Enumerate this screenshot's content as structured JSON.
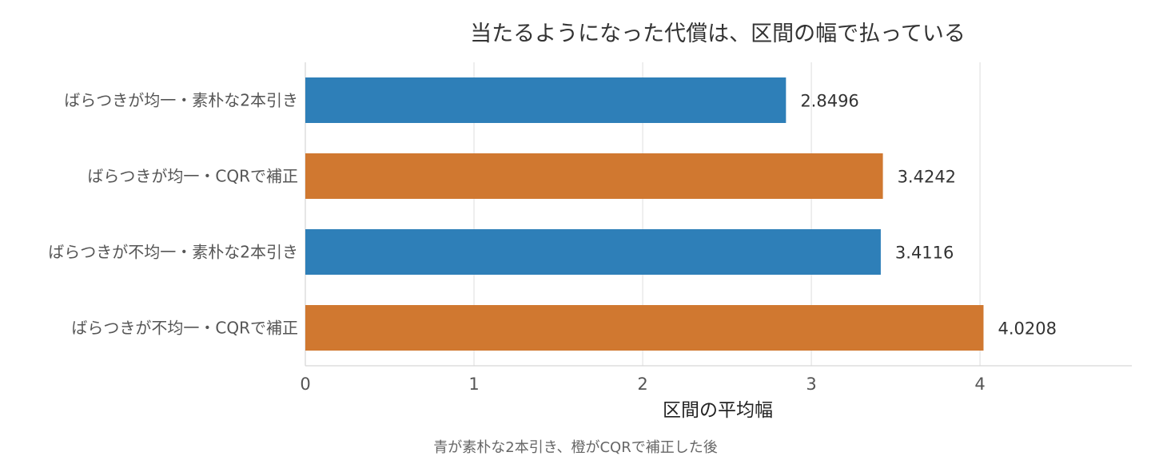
{
  "chart_data": {
    "type": "bar",
    "orientation": "horizontal",
    "title": "当たるようになった代償は、区間の幅で払っている",
    "xlabel": "区間の平均幅",
    "ylabel": "",
    "caption": "青が素朴な2本引き、橙がCQRで補正した後",
    "categories": [
      "ばらつきが均一・素朴な2本引き",
      "ばらつきが均一・CQRで補正",
      "ばらつきが不均一・素朴な2本引き",
      "ばらつきが不均一・CQRで補正"
    ],
    "values": [
      2.8496,
      3.4242,
      3.4116,
      4.0208
    ],
    "value_labels": [
      "2.8496",
      "3.4242",
      "3.4116",
      "4.0208"
    ],
    "bar_colors": [
      "#2e7fb8",
      "#d07830",
      "#2e7fb8",
      "#d07830"
    ],
    "xlim": [
      0,
      4.9
    ],
    "xticks": [
      0,
      1,
      2,
      3,
      4
    ],
    "grid": "vertical",
    "legend": "none"
  }
}
